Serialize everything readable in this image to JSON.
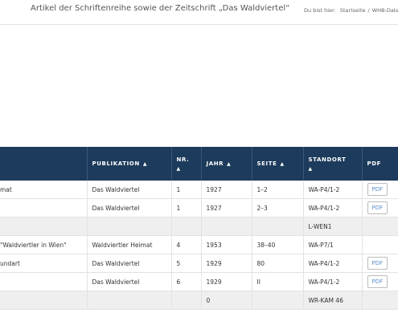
{
  "header": {
    "title": "Artikel der Schriftenreihe sowie der Zeitschrift „Das Waldviertel“",
    "breadcrumb": {
      "label": "Du bist hier:",
      "items": [
        "Startseite",
        "/",
        "WHB-Daten"
      ]
    }
  },
  "table": {
    "sort_icon": "▲",
    "columns": [
      null,
      "PUBLIKATION",
      "NR.",
      "JAHR",
      "SEITE",
      "STANDORT",
      "PDF"
    ],
    "sortable": [
      false,
      true,
      true,
      true,
      true,
      true,
      false
    ],
    "rows": [
      [
        "mat",
        "Das Waldviertel",
        "1",
        "1927",
        "1–2",
        "WA-P4/1-2",
        "PDF"
      ],
      [
        null,
        "Das Waldviertel",
        "1",
        "1927",
        "2–3",
        "WA-P4/1-2",
        "PDF"
      ],
      [
        null,
        null,
        null,
        null,
        null,
        "L-WEN1",
        null
      ],
      [
        "\"Waldviertler in Wien\"",
        "Waldviertler Heimat",
        "4",
        "1953",
        "38–40",
        "WA-P7/1",
        null
      ],
      [
        "undart",
        "Das Waldviertel",
        "5",
        "1929",
        "80",
        "WA-P4/1-2",
        "PDF"
      ],
      [
        null,
        "Das Waldviertel",
        "6",
        "1929",
        "II",
        "WA-P4/1-2",
        "PDF"
      ],
      [
        null,
        null,
        null,
        "0",
        null,
        "WR-KAM 46",
        null
      ]
    ]
  }
}
